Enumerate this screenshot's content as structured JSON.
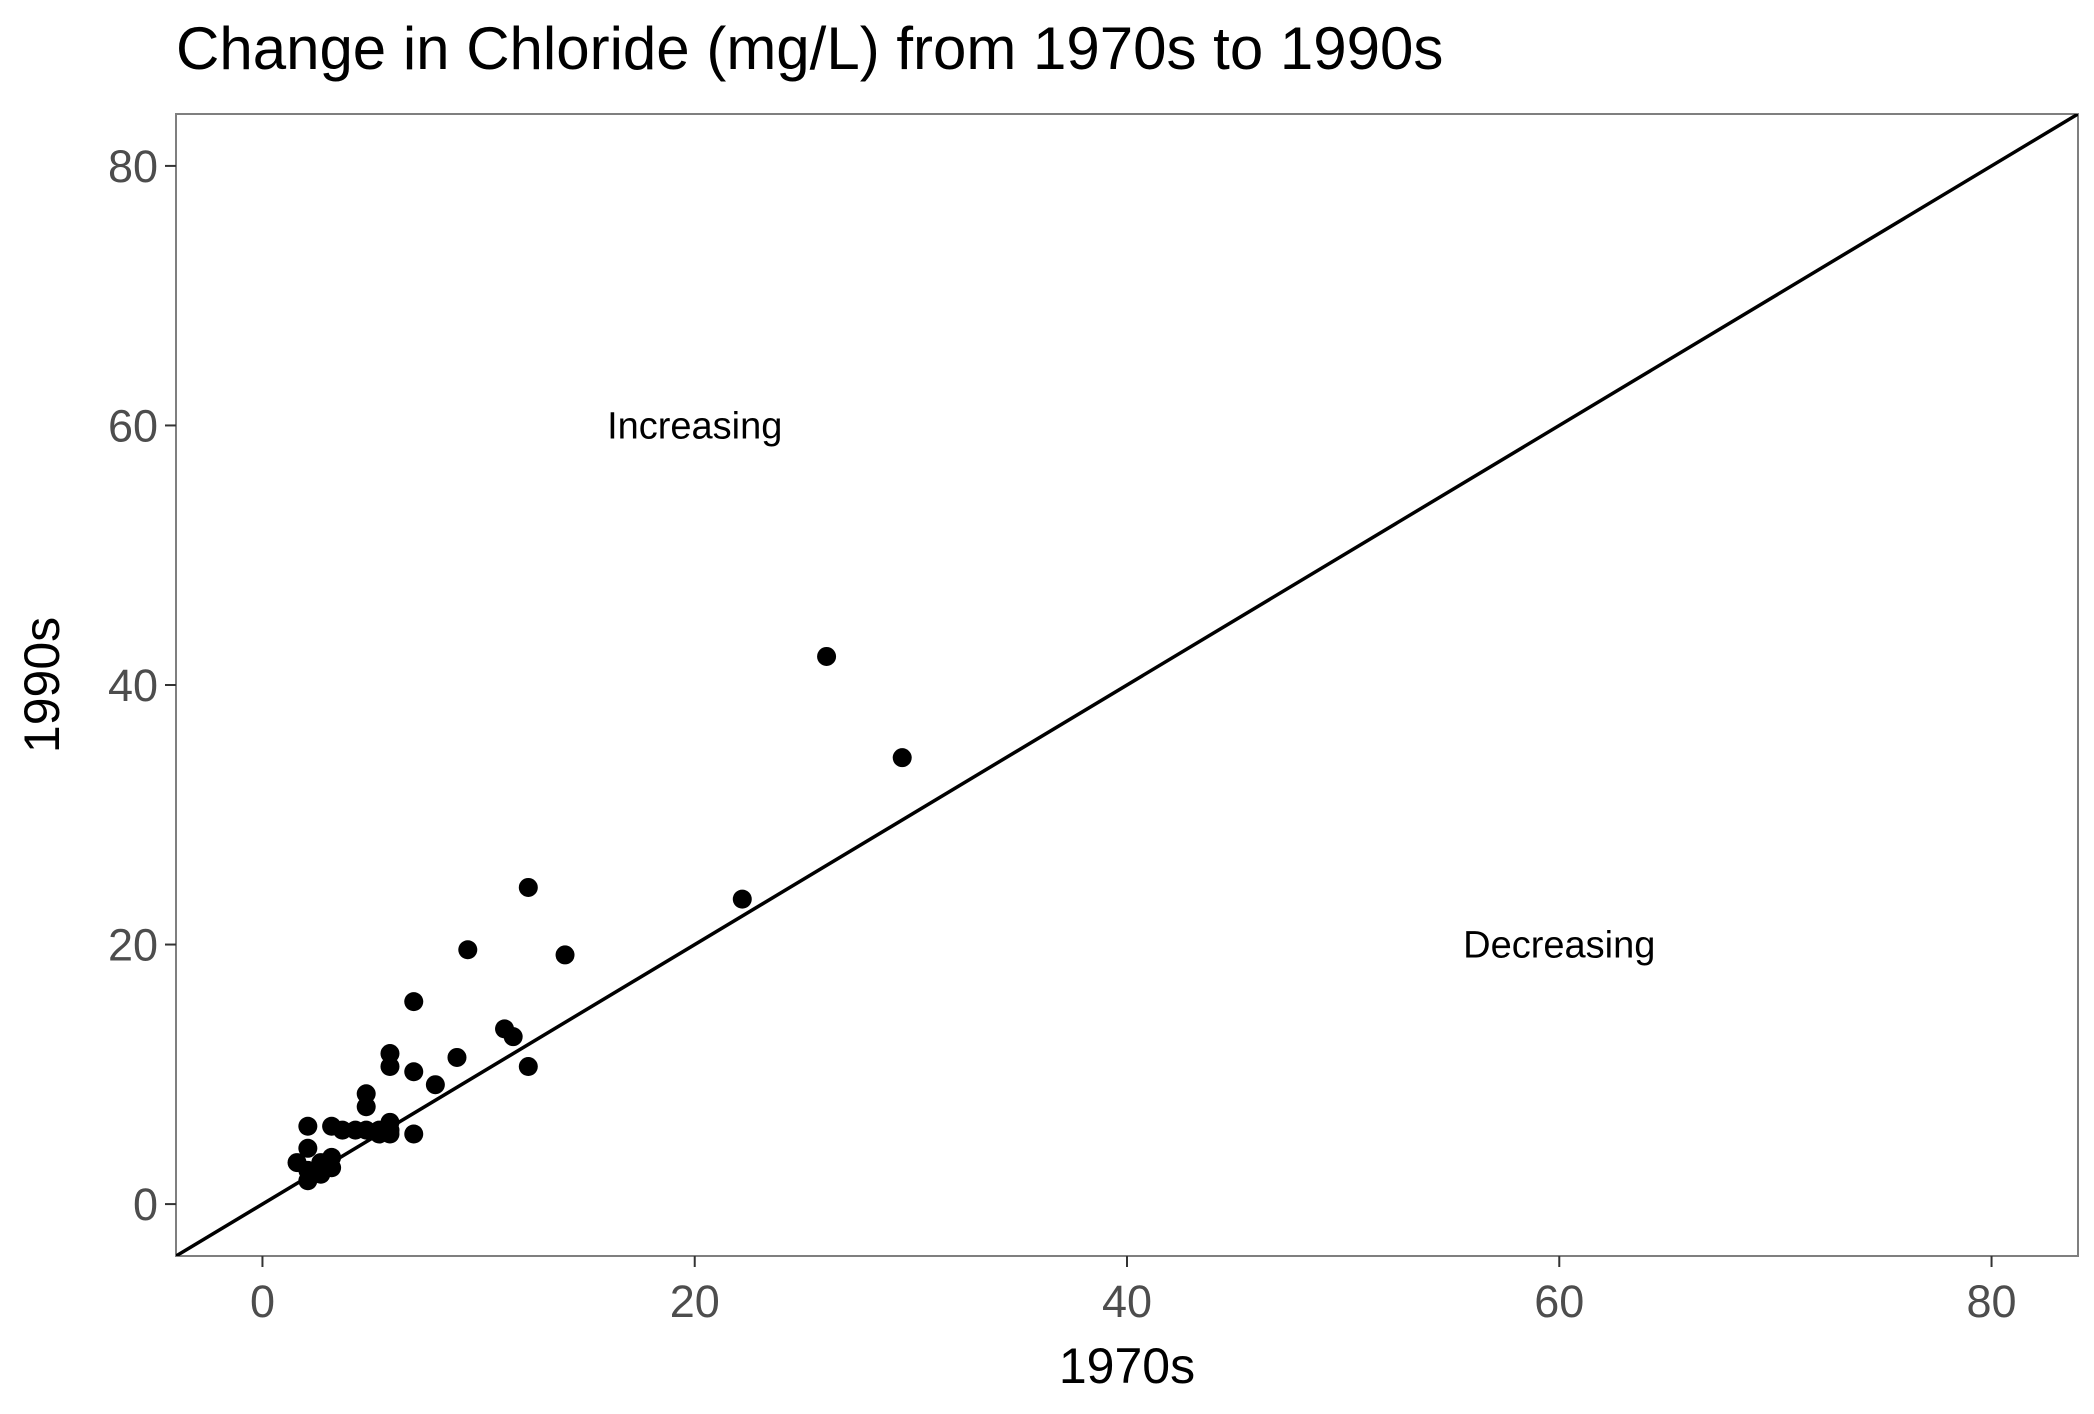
{
  "chart_data": {
    "type": "scatter",
    "title": "Change in Chloride (mg/L) from 1970s to 1990s",
    "xlabel": "1970s",
    "ylabel": "1990s",
    "xlim": [
      -4,
      84
    ],
    "ylim": [
      -4,
      84
    ],
    "xticks": [
      0,
      20,
      40,
      60,
      80
    ],
    "yticks": [
      0,
      20,
      40,
      60,
      80
    ],
    "xtick_labels": [
      "0",
      "20",
      "40",
      "60",
      "80"
    ],
    "ytick_labels": [
      "0",
      "20",
      "40",
      "60",
      "80"
    ],
    "grid": false,
    "reference_line": {
      "type": "identity",
      "slope": 1,
      "intercept": 0
    },
    "annotations": [
      {
        "text": "Increasing",
        "x": 20,
        "y": 60
      },
      {
        "text": "Decreasing",
        "x": 60,
        "y": 20
      }
    ],
    "points": [
      {
        "x": 26.1,
        "y": 42.2
      },
      {
        "x": 29.6,
        "y": 34.4
      },
      {
        "x": 12.3,
        "y": 24.4
      },
      {
        "x": 22.2,
        "y": 23.5
      },
      {
        "x": 9.5,
        "y": 19.6
      },
      {
        "x": 14.0,
        "y": 19.2
      },
      {
        "x": 7.0,
        "y": 15.6
      },
      {
        "x": 11.2,
        "y": 13.5
      },
      {
        "x": 11.6,
        "y": 12.9
      },
      {
        "x": 5.9,
        "y": 11.6
      },
      {
        "x": 9.0,
        "y": 11.3
      },
      {
        "x": 5.9,
        "y": 10.6
      },
      {
        "x": 12.3,
        "y": 10.6
      },
      {
        "x": 7.0,
        "y": 10.2
      },
      {
        "x": 8.0,
        "y": 9.2
      },
      {
        "x": 4.8,
        "y": 8.5
      },
      {
        "x": 4.8,
        "y": 7.5
      },
      {
        "x": 2.1,
        "y": 6.0
      },
      {
        "x": 3.2,
        "y": 6.0
      },
      {
        "x": 5.9,
        "y": 6.3
      },
      {
        "x": 3.7,
        "y": 5.7
      },
      {
        "x": 4.3,
        "y": 5.7
      },
      {
        "x": 4.8,
        "y": 5.7
      },
      {
        "x": 5.4,
        "y": 5.7
      },
      {
        "x": 5.9,
        "y": 5.7
      },
      {
        "x": 5.4,
        "y": 5.4
      },
      {
        "x": 5.9,
        "y": 5.4
      },
      {
        "x": 7.0,
        "y": 5.4
      },
      {
        "x": 2.1,
        "y": 4.3
      },
      {
        "x": 3.2,
        "y": 3.6
      },
      {
        "x": 1.6,
        "y": 3.2
      },
      {
        "x": 2.7,
        "y": 3.2
      },
      {
        "x": 3.2,
        "y": 2.8
      },
      {
        "x": 2.1,
        "y": 2.6
      },
      {
        "x": 2.7,
        "y": 2.3
      },
      {
        "x": 2.1,
        "y": 1.8
      }
    ]
  }
}
